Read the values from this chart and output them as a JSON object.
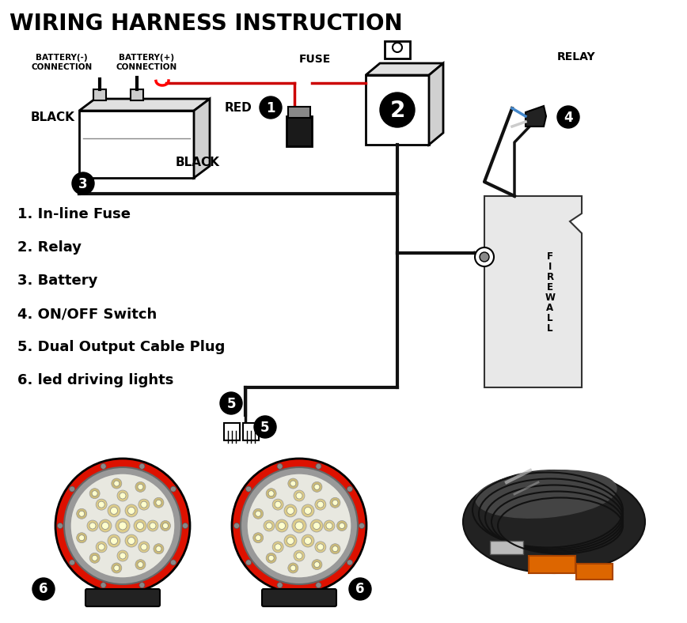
{
  "title": "WIRING HARNESS INSTRUCTION",
  "title_fontsize": 20,
  "bg_color": "#ffffff",
  "legend_items": [
    "1. In-line Fuse",
    "2. Relay",
    "3. Battery",
    "4. ON/OFF Switch",
    "5. Dual Output Cable Plug",
    "6. led driving lights"
  ],
  "label_battery_neg": "BATTERY(-)\nCONNECTION",
  "label_battery_pos": "BATTERY(+)\nCONNECTION",
  "label_fuse": "FUSE",
  "label_relay": "RELAY",
  "label_black1": "BLACK",
  "label_black2": "BLACK",
  "label_red": "RED",
  "label_firewall": "F\nI\nR\nE\nW\nA\nL\nL",
  "wire_color_black": "#111111",
  "wire_color_red": "#cc0000",
  "relay_box_color": "#ffffff",
  "fuse_color": "#222222",
  "firewall_fill": "#e8e8e8",
  "firewall_edge": "#333333",
  "led_red": "#dd1100",
  "led_chrome": "#aaaaaa",
  "led_inner": "#ccccbb",
  "led_bulb": "#eeeebb"
}
